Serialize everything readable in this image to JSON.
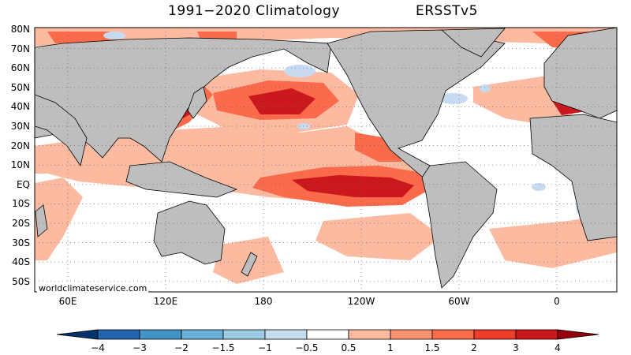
{
  "header": {
    "title": "1991−2020  Climatology",
    "dataset": "ERSSTv5"
  },
  "credit": "worldclimateservice.com",
  "axes": {
    "lat_ticks": [
      "80N",
      "70N",
      "60N",
      "50N",
      "40N",
      "30N",
      "20N",
      "10N",
      "EQ",
      "10S",
      "20S",
      "30S",
      "40S",
      "50S"
    ],
    "lon_ticks": [
      "60E",
      "120E",
      "180",
      "120W",
      "60W",
      "0"
    ]
  },
  "colorbar": {
    "labels": [
      "−4",
      "−3",
      "−2",
      "−1.5",
      "−1",
      "−0.5",
      "0.5",
      "1",
      "1.5",
      "2",
      "3",
      "4"
    ],
    "colors": [
      "#08306b",
      "#2166ac",
      "#4393c3",
      "#6baed6",
      "#9ecae1",
      "#c6dbef",
      "#ffffff",
      "#fcbba1",
      "#fc9272",
      "#fb6a4a",
      "#ef3b2c",
      "#cb181d",
      "#99000d"
    ]
  },
  "colors": {
    "land": "#bebebe",
    "ocean": "#ffffff",
    "warm_light": "#fcbba1",
    "warm_mid": "#fb6a4a",
    "warm_dark": "#cb181d",
    "cool_light": "#c6dbef"
  }
}
